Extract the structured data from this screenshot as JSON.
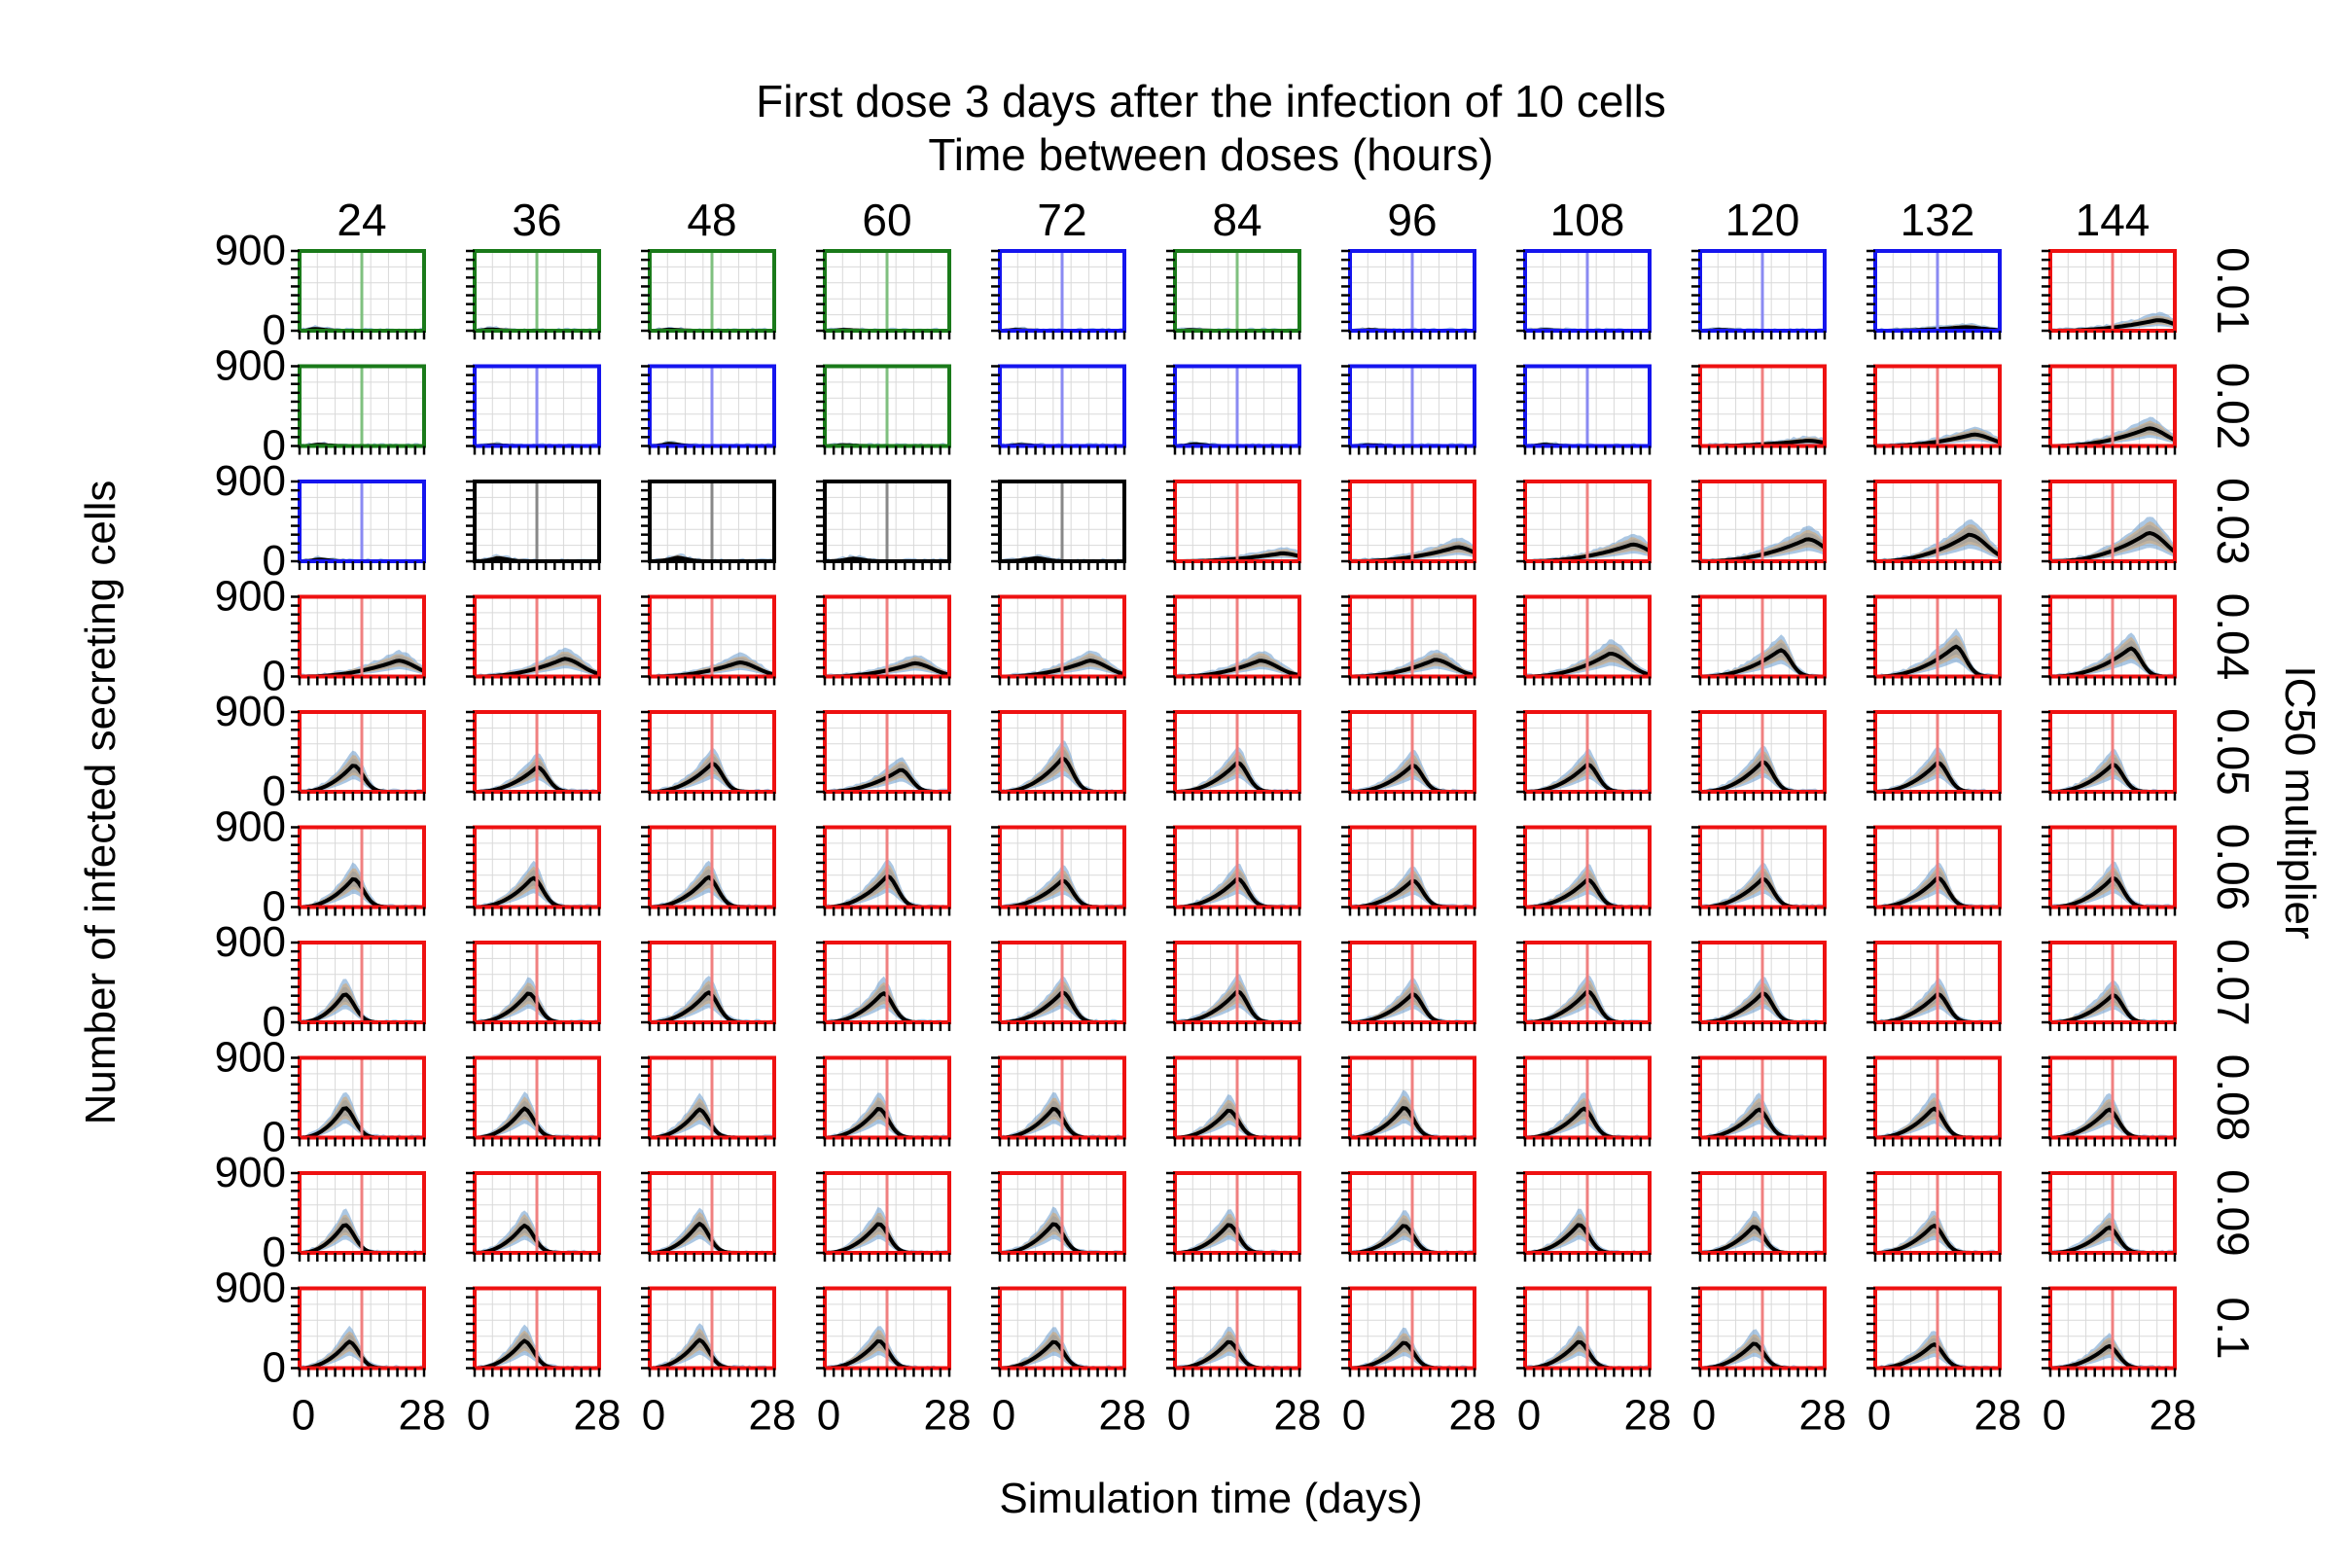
{
  "chart_data": {
    "type": "small-multiples-area-line",
    "title": "First dose 3 days after the infection of 10 cells",
    "subtitle": "Time between doses (hours)",
    "xlabel": "Simulation time (days)",
    "ylabel": "Number of infected secreting cells",
    "row_axis_label": "IC50 multiplier",
    "col_labels": [
      "24",
      "36",
      "48",
      "60",
      "72",
      "84",
      "96",
      "108",
      "120",
      "132",
      "144"
    ],
    "row_labels": [
      "0.01",
      "0.02",
      "0.03",
      "0.04",
      "0.05",
      "0.06",
      "0.07",
      "0.08",
      "0.09",
      "0.1"
    ],
    "ylim": [
      0,
      900
    ],
    "yticks": [
      "900",
      "0"
    ],
    "xlim": [
      0,
      28
    ],
    "xticks": [
      "0",
      "28"
    ],
    "dose_marker_day": 14,
    "border_colors": {
      "green": "#1a7a1a",
      "blue": "#1515ee",
      "black": "#000000",
      "red": "#ee1111"
    },
    "marker_colors": {
      "green": "#7fc07f",
      "blue": "#8a8af2",
      "black": "#888888",
      "red": "#f08080"
    },
    "band_colors": [
      "#6699cc",
      "#d9a05b",
      "#999999"
    ],
    "panel_status": [
      [
        "green",
        "green",
        "green",
        "green",
        "blue",
        "green",
        "blue",
        "blue",
        "blue",
        "blue",
        "red"
      ],
      [
        "green",
        "blue",
        "blue",
        "green",
        "blue",
        "blue",
        "blue",
        "blue",
        "red",
        "red",
        "red"
      ],
      [
        "blue",
        "black",
        "black",
        "black",
        "black",
        "red",
        "red",
        "red",
        "red",
        "red",
        "red"
      ],
      [
        "red",
        "red",
        "red",
        "red",
        "red",
        "red",
        "red",
        "red",
        "red",
        "red",
        "red"
      ],
      [
        "red",
        "red",
        "red",
        "red",
        "red",
        "red",
        "red",
        "red",
        "red",
        "red",
        "red"
      ],
      [
        "red",
        "red",
        "red",
        "red",
        "red",
        "red",
        "red",
        "red",
        "red",
        "red",
        "red"
      ],
      [
        "red",
        "red",
        "red",
        "red",
        "red",
        "red",
        "red",
        "red",
        "red",
        "red",
        "red"
      ],
      [
        "red",
        "red",
        "red",
        "red",
        "red",
        "red",
        "red",
        "red",
        "red",
        "red",
        "red"
      ],
      [
        "red",
        "red",
        "red",
        "red",
        "red",
        "red",
        "red",
        "red",
        "red",
        "red",
        "red"
      ],
      [
        "red",
        "red",
        "red",
        "red",
        "red",
        "red",
        "red",
        "red",
        "red",
        "red",
        "red"
      ]
    ],
    "peak_values": [
      [
        20,
        15,
        12,
        10,
        10,
        8,
        8,
        8,
        10,
        40,
        120
      ],
      [
        15,
        10,
        25,
        10,
        12,
        20,
        10,
        15,
        60,
        130,
        200
      ],
      [
        20,
        35,
        40,
        30,
        35,
        90,
        160,
        190,
        250,
        300,
        320
      ],
      [
        180,
        200,
        160,
        150,
        180,
        180,
        190,
        260,
        300,
        340,
        320
      ],
      [
        300,
        280,
        320,
        250,
        380,
        330,
        300,
        310,
        340,
        330,
        310
      ],
      [
        320,
        330,
        340,
        350,
        300,
        320,
        300,
        310,
        320,
        330,
        330
      ],
      [
        320,
        330,
        340,
        330,
        340,
        350,
        320,
        350,
        330,
        320,
        310
      ],
      [
        340,
        330,
        320,
        330,
        330,
        310,
        340,
        330,
        320,
        330,
        320
      ],
      [
        320,
        310,
        330,
        330,
        330,
        320,
        310,
        320,
        300,
        310,
        290
      ],
      [
        300,
        310,
        320,
        310,
        300,
        300,
        290,
        300,
        280,
        270,
        250
      ]
    ],
    "peak_day": [
      [
        3,
        3,
        4,
        4,
        3,
        3,
        4,
        4,
        4,
        20,
        24
      ],
      [
        4,
        4,
        4,
        4,
        4,
        4,
        4,
        4,
        24,
        22,
        22
      ],
      [
        4,
        5,
        6,
        6,
        8,
        24,
        24,
        24,
        24,
        21,
        22
      ],
      [
        22,
        20,
        20,
        20,
        20,
        19,
        19,
        19,
        18,
        18,
        18
      ],
      [
        12,
        14,
        14,
        17,
        14,
        14,
        14,
        14,
        14,
        14,
        14
      ],
      [
        12,
        13,
        13,
        14,
        14,
        14,
        14,
        14,
        14,
        14,
        14
      ],
      [
        10,
        12,
        13,
        13,
        14,
        14,
        14,
        14,
        14,
        14,
        14
      ],
      [
        10,
        11,
        11,
        12,
        12,
        12,
        12,
        13,
        13,
        13,
        13
      ],
      [
        10,
        11,
        11,
        12,
        12,
        12,
        12,
        12,
        12,
        13,
        13
      ],
      [
        11,
        11,
        11,
        12,
        12,
        12,
        12,
        12,
        12,
        13,
        13
      ]
    ]
  }
}
